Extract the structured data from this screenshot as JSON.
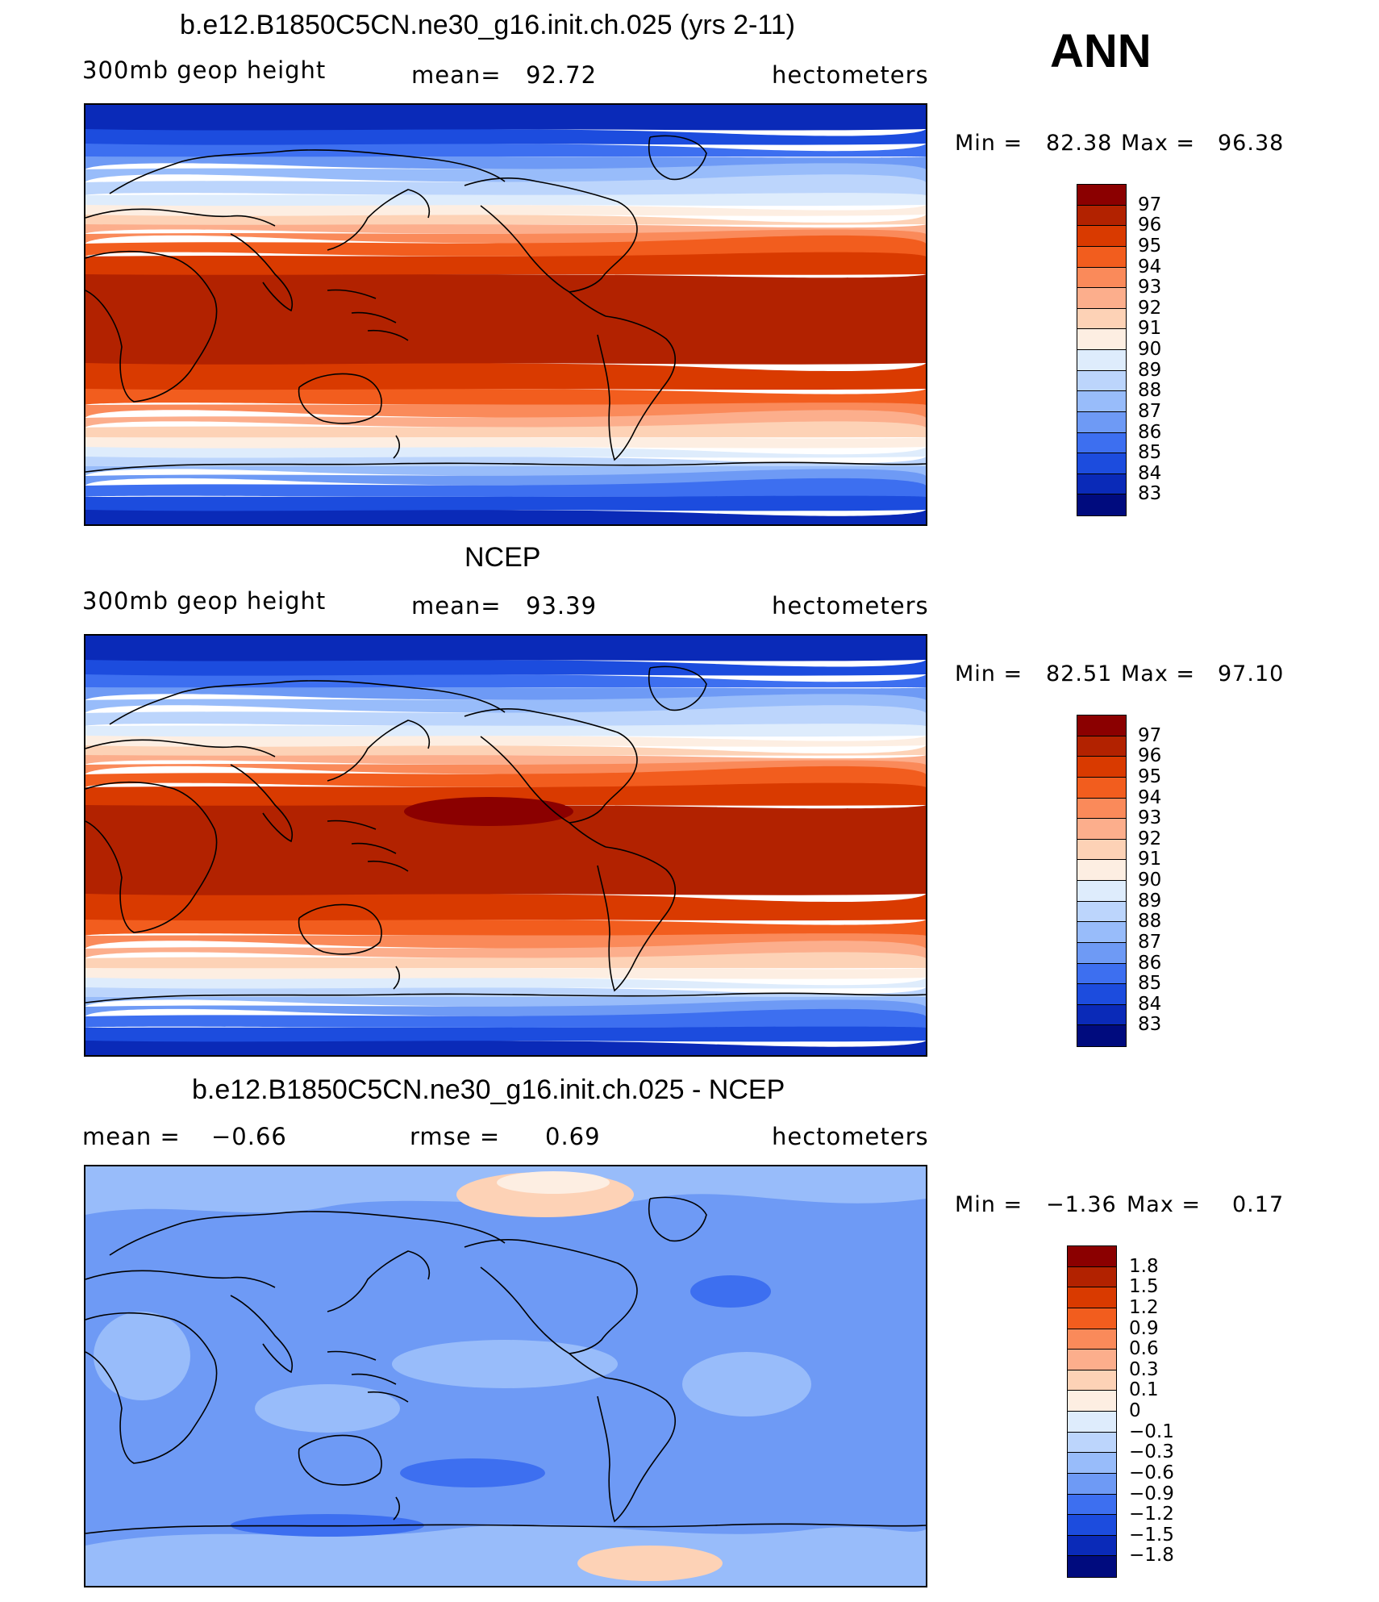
{
  "season": "ANN",
  "chart_data": [
    {
      "type": "heatmap",
      "title": "b.e12.B1850C5CN.ne30_g16.init.ch.025 (yrs 2-11)",
      "variable": "300mb geop height",
      "stat_label": "mean=",
      "stat_value": "92.72",
      "units": "hectometers",
      "min_label": "Min =",
      "min_value": "82.38",
      "max_label": "Max =",
      "max_value": "96.38",
      "levels": [
        "97",
        "96",
        "95",
        "94",
        "93",
        "92",
        "91",
        "90",
        "89",
        "88",
        "87",
        "86",
        "85",
        "84",
        "83"
      ],
      "colors": [
        "#8b0000",
        "#b22200",
        "#d93a00",
        "#f25d1e",
        "#fa8a5a",
        "#fcae8c",
        "#fdd2b6",
        "#fdeee2",
        "#deecfc",
        "#bcd5fc",
        "#98bcfa",
        "#6e9af5",
        "#3d6ff0",
        "#1c4cde",
        "#0a2ab8",
        "#000b7e"
      ]
    },
    {
      "type": "heatmap",
      "title": "NCEP",
      "variable": "300mb geop height",
      "stat_label": "mean=",
      "stat_value": "93.39",
      "units": "hectometers",
      "min_label": "Min =",
      "min_value": "82.51",
      "max_label": "Max =",
      "max_value": "97.10",
      "levels": [
        "97",
        "96",
        "95",
        "94",
        "93",
        "92",
        "91",
        "90",
        "89",
        "88",
        "87",
        "86",
        "85",
        "84",
        "83"
      ],
      "colors": [
        "#8b0000",
        "#b22200",
        "#d93a00",
        "#f25d1e",
        "#fa8a5a",
        "#fcae8c",
        "#fdd2b6",
        "#fdeee2",
        "#deecfc",
        "#bcd5fc",
        "#98bcfa",
        "#6e9af5",
        "#3d6ff0",
        "#1c4cde",
        "#0a2ab8",
        "#000b7e"
      ]
    },
    {
      "type": "heatmap",
      "title": "b.e12.B1850C5CN.ne30_g16.init.ch.025 - NCEP",
      "variable_label": "mean =",
      "variable_value": "−0.66",
      "stat_label": "rmse =",
      "stat_value": "0.69",
      "units": "hectometers",
      "min_label": "Min =",
      "min_value": "−1.36",
      "max_label": "Max =",
      "max_value": "0.17",
      "levels": [
        "1.8",
        "1.5",
        "1.2",
        "0.9",
        "0.6",
        "0.3",
        "0.1",
        "0",
        "−0.1",
        "−0.3",
        "−0.6",
        "−0.9",
        "−1.2",
        "−1.5",
        "−1.8"
      ],
      "colors": [
        "#8b0000",
        "#b22200",
        "#d93a00",
        "#f25d1e",
        "#fa8a5a",
        "#fcae8c",
        "#fdd2b6",
        "#fdeee2",
        "#deecfc",
        "#bcd5fc",
        "#98bcfa",
        "#6e9af5",
        "#3d6ff0",
        "#1c4cde",
        "#0a2ab8",
        "#000b7e"
      ]
    }
  ]
}
